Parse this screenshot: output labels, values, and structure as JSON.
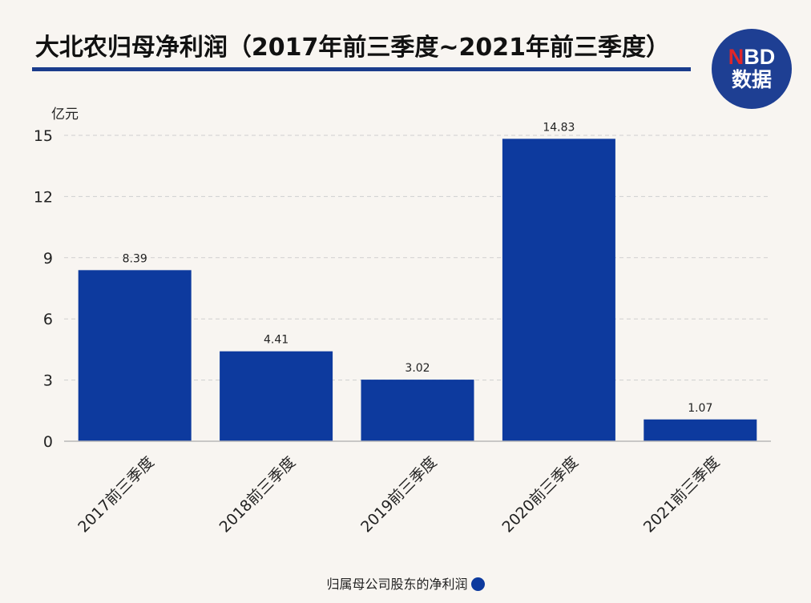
{
  "title": "大北农归母净利润（2017年前三季度~2021年前三季度）",
  "logo": {
    "line1_n": "N",
    "line1_rest": "BD",
    "line2": "数据"
  },
  "colors": {
    "bar": "#0d3a9e",
    "title_rule": "#1a3c8c",
    "grid": "#cfcfcf"
  },
  "chart_data": {
    "type": "bar",
    "title": "大北农归母净利润（2017年前三季度~2021年前三季度）",
    "ylabel": "亿元",
    "xlabel": "",
    "ylim": [
      0,
      15
    ],
    "yticks": [
      0,
      3,
      6,
      9,
      12,
      15
    ],
    "categories": [
      "2017前三季度",
      "2018前三季度",
      "2019前三季度",
      "2020前三季度",
      "2021前三季度"
    ],
    "series": [
      {
        "name": "归属母公司股东的净利润",
        "values": [
          8.39,
          4.41,
          3.02,
          14.83,
          1.07
        ]
      }
    ],
    "value_labels": [
      "8.39",
      "4.41",
      "3.02",
      "14.83",
      "1.07"
    ],
    "grid": true,
    "legend": "bottom-center"
  }
}
